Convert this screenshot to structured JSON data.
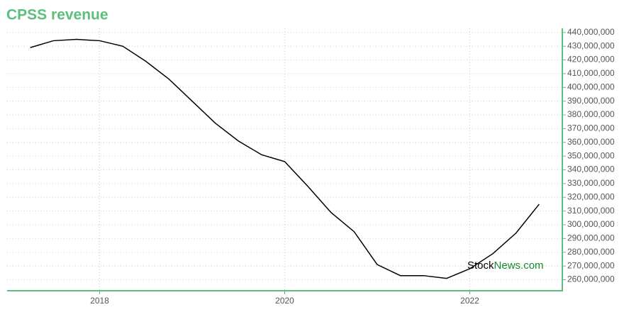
{
  "chart_data": {
    "type": "line",
    "title": "CPSS revenue",
    "x": [
      2017.25,
      2017.5,
      2017.75,
      2018,
      2018.25,
      2018.5,
      2018.75,
      2019,
      2019.25,
      2019.5,
      2019.75,
      2020,
      2020.25,
      2020.5,
      2020.75,
      2021,
      2021.25,
      2021.5,
      2021.75,
      2022,
      2022.25,
      2022.5,
      2022.75
    ],
    "series": [
      {
        "name": "Revenue",
        "color": "#000000",
        "values": [
          429000000,
          434000000,
          435000000,
          434000000,
          430000000,
          419000000,
          406000000,
          390000000,
          374000000,
          361000000,
          351000000,
          346000000,
          328000000,
          309000000,
          295000000,
          271000000,
          263000000,
          263000000,
          261000000,
          268000000,
          279000000,
          294000000,
          315000000
        ]
      }
    ],
    "xlim": [
      2017,
      2023
    ],
    "xticks": [
      2018,
      2020,
      2022
    ],
    "ylim": [
      252000000,
      443000000
    ],
    "yticks": [
      {
        "value": 260000000,
        "label": "260,000,000"
      },
      {
        "value": 270000000,
        "label": "270,000,000"
      },
      {
        "value": 280000000,
        "label": "280,000,000"
      },
      {
        "value": 290000000,
        "label": "290,000,000"
      },
      {
        "value": 300000000,
        "label": "300,000,000"
      },
      {
        "value": 310000000,
        "label": "310,000,000"
      },
      {
        "value": 320000000,
        "label": "320,000,000"
      },
      {
        "value": 330000000,
        "label": "330,000,000"
      },
      {
        "value": 340000000,
        "label": "340,000,000"
      },
      {
        "value": 350000000,
        "label": "350,000,000"
      },
      {
        "value": 360000000,
        "label": "360,000,000"
      },
      {
        "value": 370000000,
        "label": "370,000,000"
      },
      {
        "value": 380000000,
        "label": "380,000,000"
      },
      {
        "value": 390000000,
        "label": "390,000,000"
      },
      {
        "value": 400000000,
        "label": "400,000,000"
      },
      {
        "value": 410000000,
        "label": "410,000,000"
      },
      {
        "value": 420000000,
        "label": "420,000,000"
      },
      {
        "value": 430000000,
        "label": "430,000,000"
      },
      {
        "value": 440000000,
        "label": "440,000,000"
      }
    ],
    "grid": true,
    "axis_color": "#5cbf7c",
    "watermark": [
      "Stock",
      "News.com"
    ]
  }
}
